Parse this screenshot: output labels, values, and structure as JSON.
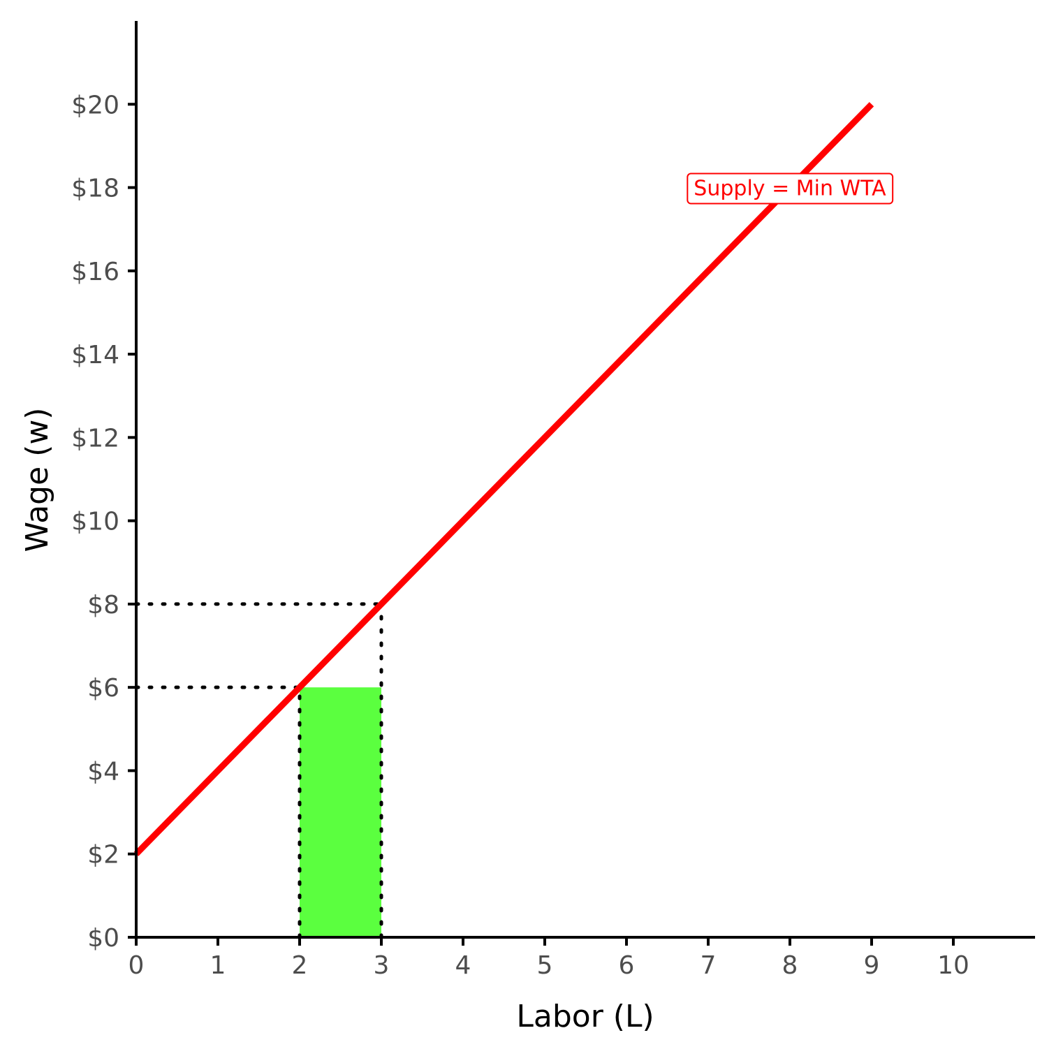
{
  "chart_data": {
    "type": "line",
    "xlabel": "Labor (L)",
    "ylabel": "Wage (w)",
    "xlim": [
      0,
      11
    ],
    "ylim": [
      0,
      22
    ],
    "x_ticks": [
      0,
      1,
      2,
      3,
      4,
      5,
      6,
      7,
      8,
      9,
      10
    ],
    "x_tick_labels": [
      "0",
      "1",
      "2",
      "3",
      "4",
      "5",
      "6",
      "7",
      "8",
      "9",
      "10"
    ],
    "y_ticks": [
      0,
      2,
      4,
      6,
      8,
      10,
      12,
      14,
      16,
      18,
      20
    ],
    "y_tick_labels": [
      "$0",
      "$2",
      "$4",
      "$6",
      "$8",
      "$10",
      "$12",
      "$14",
      "$16",
      "$18",
      "$20"
    ],
    "grid": false,
    "series": [
      {
        "x": [
          0,
          9
        ],
        "y": [
          2,
          20
        ],
        "color": "#ff0000"
      }
    ],
    "shaded_area": {
      "x": [
        2,
        3
      ],
      "y": [
        0,
        6
      ],
      "color": "#5bff3f"
    },
    "reference_lines": [
      {
        "from": [
          0,
          6
        ],
        "to": [
          2,
          6
        ]
      },
      {
        "from": [
          2,
          0
        ],
        "to": [
          2,
          6
        ]
      },
      {
        "from": [
          0,
          8
        ],
        "to": [
          3,
          8
        ]
      },
      {
        "from": [
          3,
          0
        ],
        "to": [
          3,
          8
        ]
      }
    ],
    "annotations": [
      {
        "text": "Supply = Min WTA",
        "x": 8,
        "y": 18,
        "color": "#ff0000"
      }
    ]
  }
}
